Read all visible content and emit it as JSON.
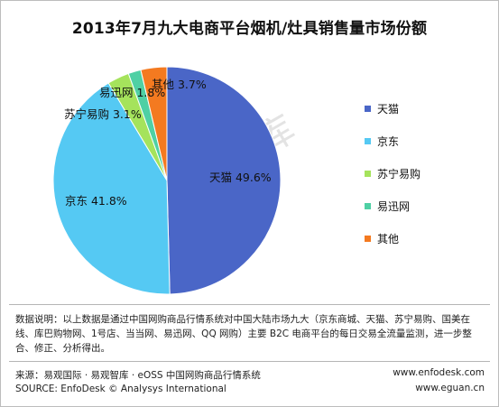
{
  "chart_data": {
    "type": "pie",
    "title": "2013年7月九大电商平台烟机/灶具销售量市场份额",
    "slices": [
      {
        "name": "天猫",
        "value": 49.6,
        "label": "天猫 49.6%",
        "color": "#4a66c7"
      },
      {
        "name": "京东",
        "value": 41.8,
        "label": "京东 41.8%",
        "color": "#55c9f3"
      },
      {
        "name": "苏宁易购",
        "value": 3.1,
        "label": "苏宁易购 3.1%",
        "color": "#a5e35c"
      },
      {
        "name": "易迅网",
        "value": 1.8,
        "label": "易迅网 1.8%",
        "color": "#4fd0a4"
      },
      {
        "name": "其他",
        "value": 3.7,
        "label": "其他 3.7%",
        "color": "#f47a20"
      }
    ],
    "legend": [
      "天猫",
      "京东",
      "苏宁易购",
      "易迅网",
      "其他"
    ],
    "legend_position": "right"
  },
  "watermark": "易观智库",
  "note": "数据说明：以上数据是通过中国网购商品行情系统对中国大陆市场九大（京东商城、天猫、苏宁易购、国美在线、库巴购物网、1号店、当当网、易迅网、QQ 网购）主要 B2C 电商平台的每日交易全流量监测，进一步整合、修正、分析得出。",
  "source_cn": "来源：易观国际 · 易观智库 · eOSS 中国网购商品行情系统",
  "source_en": "SOURCE: EnfoDesk © Analysys International",
  "url1": "www.enfodesk.com",
  "url2": "www.eguan.cn"
}
